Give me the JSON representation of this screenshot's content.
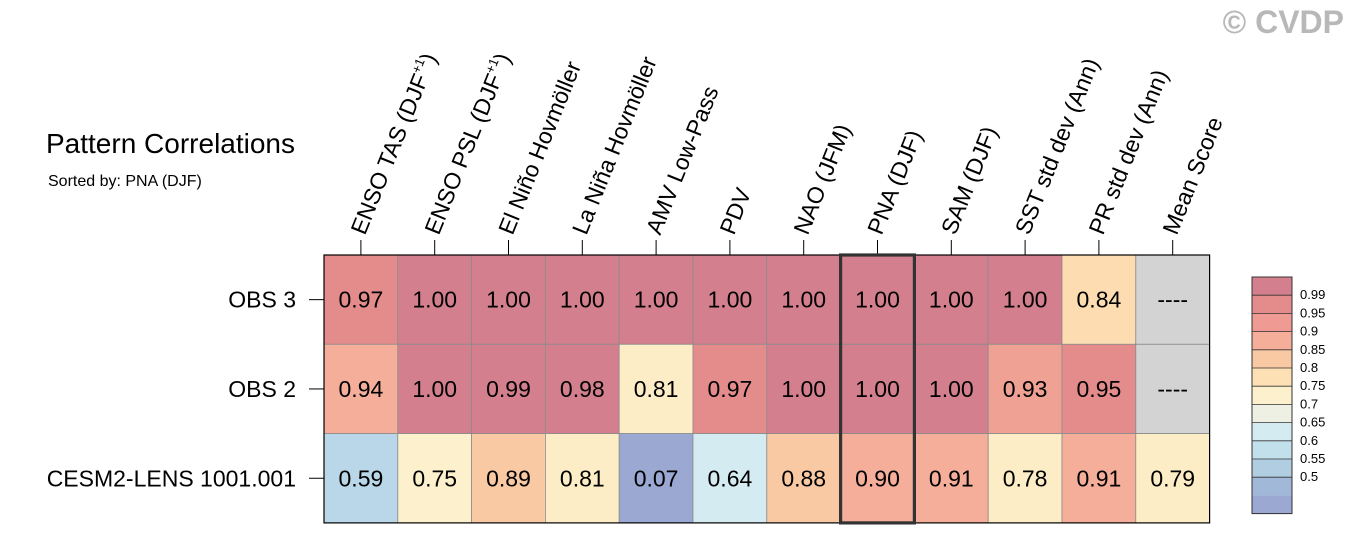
{
  "watermark": "© CVDP",
  "title": "Pattern Correlations",
  "subtitle": "Sorted by: PNA (DJF)",
  "chart_data": {
    "type": "heatmap",
    "columns": [
      "ENSO TAS (DJF+1)",
      "ENSO PSL (DJF+1)",
      "El Niño Hovmöller",
      "La Niña Hovmöller",
      "AMV Low-Pass",
      "PDV",
      "NAO (JFM)",
      "PNA (DJF)",
      "SAM (DJF)",
      "SST std dev (Ann)",
      "PR std dev (Ann)",
      "Mean Score"
    ],
    "column_headers": [
      {
        "main": "ENSO TAS (DJF",
        "sup": "+1",
        "tail": ")"
      },
      {
        "main": "ENSO PSL (DJF",
        "sup": "+1",
        "tail": ")"
      },
      {
        "main": "El Niño Hovmöller",
        "sup": "",
        "tail": ""
      },
      {
        "main": "La Niña Hovmöller",
        "sup": "",
        "tail": ""
      },
      {
        "main": "AMV Low-Pass",
        "sup": "",
        "tail": ""
      },
      {
        "main": "PDV",
        "sup": "",
        "tail": ""
      },
      {
        "main": "NAO (JFM)",
        "sup": "",
        "tail": ""
      },
      {
        "main": "PNA (DJF)",
        "sup": "",
        "tail": ""
      },
      {
        "main": "SAM (DJF)",
        "sup": "",
        "tail": ""
      },
      {
        "main": "SST std dev (Ann)",
        "sup": "",
        "tail": ""
      },
      {
        "main": "PR std dev (Ann)",
        "sup": "",
        "tail": ""
      },
      {
        "main": "Mean Score",
        "sup": "",
        "tail": ""
      }
    ],
    "rows": [
      "OBS 3",
      "OBS 2",
      "CESM2-LENS 1001.001"
    ],
    "values": [
      [
        0.97,
        1.0,
        1.0,
        1.0,
        1.0,
        1.0,
        1.0,
        1.0,
        1.0,
        1.0,
        0.84,
        null
      ],
      [
        0.94,
        1.0,
        0.99,
        0.98,
        0.81,
        0.97,
        1.0,
        1.0,
        1.0,
        0.93,
        0.95,
        null
      ],
      [
        0.59,
        0.75,
        0.89,
        0.81,
        0.07,
        0.64,
        0.88,
        0.9,
        0.91,
        0.78,
        0.91,
        0.79
      ]
    ],
    "labels": [
      [
        "0.97",
        "1.00",
        "1.00",
        "1.00",
        "1.00",
        "1.00",
        "1.00",
        "1.00",
        "1.00",
        "1.00",
        "0.84",
        "----"
      ],
      [
        "0.94",
        "1.00",
        "0.99",
        "0.98",
        "0.81",
        "0.97",
        "1.00",
        "1.00",
        "1.00",
        "0.93",
        "0.95",
        "----"
      ],
      [
        "0.59",
        "0.75",
        "0.89",
        "0.81",
        "0.07",
        "0.64",
        "0.88",
        "0.90",
        "0.91",
        "0.78",
        "0.91",
        "0.79"
      ]
    ],
    "highlighted_column": "PNA (DJF)",
    "missing_color": "#d3d3d3",
    "colorbar": {
      "levels": [
        "0.99",
        "0.95",
        "0.9",
        "0.85",
        "0.8",
        "0.75",
        "0.7",
        "0.65",
        "0.6",
        "0.55",
        "0.5"
      ],
      "colors": [
        "#d47f8e",
        "#e48b8b",
        "#ef9a92",
        "#f4ae9a",
        "#f9c9a4",
        "#fde0b3",
        "#fdf0cc",
        "#eef0e4",
        "#d5ebf2",
        "#c2dfec",
        "#b0cde2",
        "#a1b8d9",
        "#9aa8d2"
      ]
    },
    "cell_colors": [
      [
        "#e48b8b",
        "#d47f8e",
        "#d47f8e",
        "#d47f8e",
        "#d47f8e",
        "#d47f8e",
        "#d47f8e",
        "#d47f8e",
        "#d47f8e",
        "#d47f8e",
        "#fcdcb0",
        "#d3d3d3"
      ],
      [
        "#f4ae9a",
        "#d47f8e",
        "#d47f8e",
        "#d47f8e",
        "#fdedc6",
        "#e48b8b",
        "#d47f8e",
        "#d47f8e",
        "#d47f8e",
        "#efa294",
        "#e48b8b",
        "#d3d3d3"
      ],
      [
        "#b9d7e8",
        "#fdf0cc",
        "#f9c9a4",
        "#fdedc6",
        "#9aa8d2",
        "#d5ebf2",
        "#f9c9a4",
        "#f4ae9a",
        "#f4ae9a",
        "#fdedc6",
        "#f4ae9a",
        "#fdedc6"
      ]
    ]
  }
}
